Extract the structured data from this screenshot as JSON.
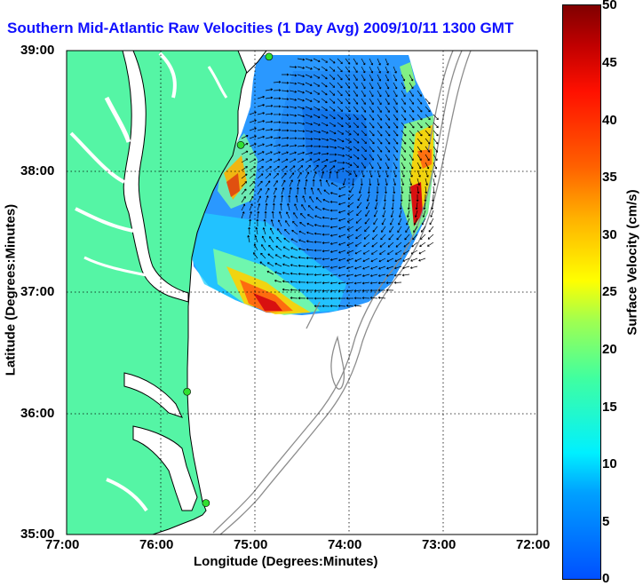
{
  "title": "Southern Mid-Atlantic Raw Velocities (1 Day Avg) 2009/10/11 1300 GMT",
  "axes": {
    "xlabel": "Longitude (Degrees:Minutes)",
    "ylabel": "Latitude (Degrees:Minutes)",
    "xticks": [
      "77:00",
      "76:00",
      "75:00",
      "74:00",
      "73:00",
      "72:00"
    ],
    "yticks": [
      "39:00",
      "38:00",
      "37:00",
      "36:00",
      "35:00"
    ],
    "xlim": [
      -77,
      -72
    ],
    "ylim": [
      35,
      39
    ],
    "grid": "dotted"
  },
  "colorbar": {
    "label": "Surface Velocity (cm/s)",
    "ticks": [
      "0",
      "5",
      "10",
      "15",
      "20",
      "25",
      "30",
      "35",
      "40",
      "45",
      "50"
    ],
    "range": [
      0,
      50
    ]
  },
  "colors": {
    "land": "#55f5a5",
    "land_outline": "#000000",
    "bathymetry": "#8c8c8c",
    "title": "#1010ff",
    "station": "#30e030"
  },
  "stations": [
    {
      "lon": -74.85,
      "lat": 38.95
    },
    {
      "lon": -75.15,
      "lat": 38.22
    },
    {
      "lon": -75.72,
      "lat": 36.18
    },
    {
      "lon": -75.52,
      "lat": 35.26
    }
  ]
}
